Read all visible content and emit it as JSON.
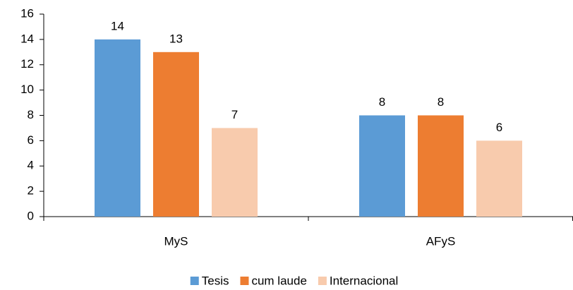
{
  "chart_data": {
    "type": "bar",
    "categories": [
      "MyS",
      "AFyS"
    ],
    "series": [
      {
        "name": "Tesis",
        "color": "#5b9bd5",
        "values": [
          14,
          8
        ]
      },
      {
        "name": "cum laude",
        "color": "#ed7d31",
        "values": [
          13,
          8
        ]
      },
      {
        "name": "Internacional",
        "color": "#f8cbad",
        "values": [
          7,
          6
        ]
      }
    ],
    "ylim": [
      0,
      16
    ],
    "yticks": [
      0,
      2,
      4,
      6,
      8,
      10,
      12,
      14,
      16
    ],
    "grid": false,
    "legend": "bottom"
  }
}
